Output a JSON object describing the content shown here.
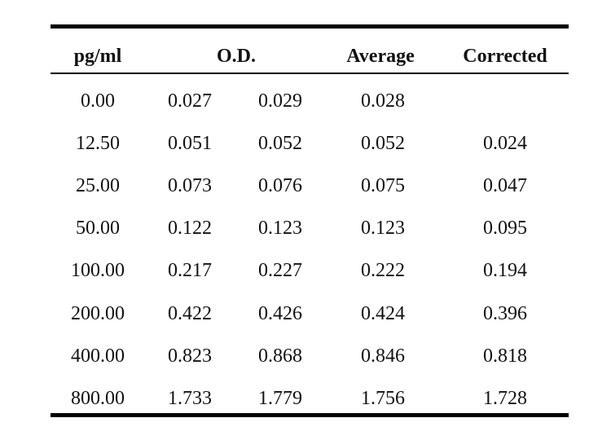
{
  "table": {
    "headers": {
      "conc": "pg/ml",
      "od": "O.D.",
      "average": "Average",
      "corrected": "Corrected"
    },
    "rows": [
      {
        "conc": "0.00",
        "od1": "0.027",
        "od2": "0.029",
        "average": "0.028",
        "corrected": ""
      },
      {
        "conc": "12.50",
        "od1": "0.051",
        "od2": "0.052",
        "average": "0.052",
        "corrected": "0.024"
      },
      {
        "conc": "25.00",
        "od1": "0.073",
        "od2": "0.076",
        "average": "0.075",
        "corrected": "0.047"
      },
      {
        "conc": "50.00",
        "od1": "0.122",
        "od2": "0.123",
        "average": "0.123",
        "corrected": "0.095"
      },
      {
        "conc": "100.00",
        "od1": "0.217",
        "od2": "0.227",
        "average": "0.222",
        "corrected": "0.194"
      },
      {
        "conc": "200.00",
        "od1": "0.422",
        "od2": "0.426",
        "average": "0.424",
        "corrected": "0.396"
      },
      {
        "conc": "400.00",
        "od1": "0.823",
        "od2": "0.868",
        "average": "0.846",
        "corrected": "0.818"
      },
      {
        "conc": "800.00",
        "od1": "1.733",
        "od2": "1.779",
        "average": "1.756",
        "corrected": "1.728"
      }
    ]
  }
}
